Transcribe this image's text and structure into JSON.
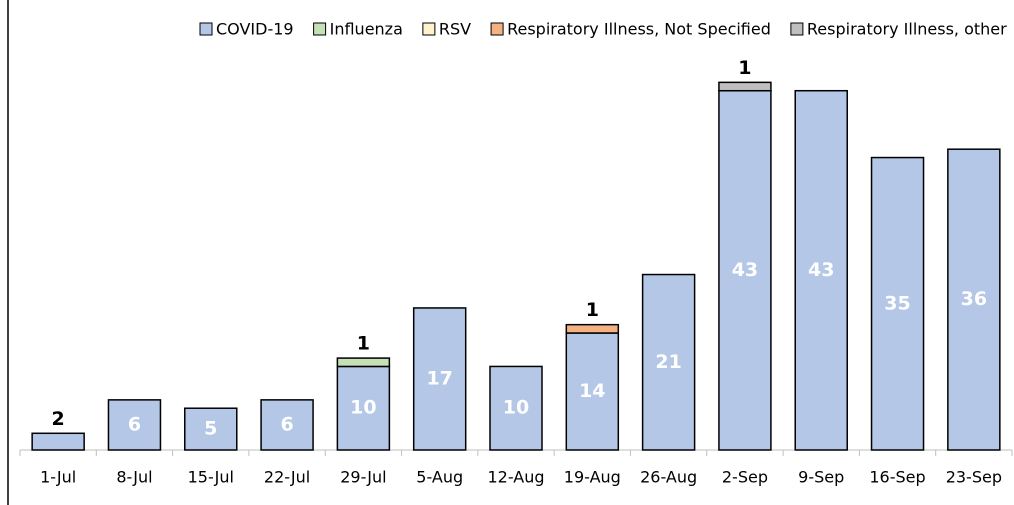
{
  "chart_data": {
    "type": "stacked_bar",
    "categories": [
      "1-Jul",
      "8-Jul",
      "15-Jul",
      "22-Jul",
      "29-Jul",
      "5-Aug",
      "12-Aug",
      "19-Aug",
      "26-Aug",
      "2-Sep",
      "9-Sep",
      "16-Sep",
      "23-Sep"
    ],
    "series": [
      {
        "name": "COVID-19",
        "color": "#b4c7e7",
        "values": [
          2,
          6,
          5,
          6,
          10,
          17,
          10,
          14,
          21,
          43,
          43,
          35,
          36
        ]
      },
      {
        "name": "Influenza",
        "color": "#c5e0b4",
        "values": [
          null,
          null,
          null,
          null,
          1,
          null,
          null,
          null,
          null,
          null,
          null,
          null,
          null
        ]
      },
      {
        "name": "RSV",
        "color": "#fff2cc",
        "values": [
          null,
          null,
          null,
          null,
          null,
          null,
          null,
          null,
          null,
          null,
          null,
          null,
          null
        ]
      },
      {
        "name": "Respiratory Illness, Not Specified",
        "color": "#f4b183",
        "values": [
          null,
          null,
          null,
          null,
          null,
          null,
          null,
          1,
          null,
          null,
          null,
          null,
          null
        ]
      },
      {
        "name": "Respiratory Illness, other",
        "color": "#bfbfbf",
        "values": [
          null,
          null,
          null,
          null,
          null,
          null,
          null,
          null,
          null,
          1,
          null,
          null,
          null
        ]
      }
    ],
    "ylim": [
      0,
      45
    ],
    "legend": "top"
  }
}
